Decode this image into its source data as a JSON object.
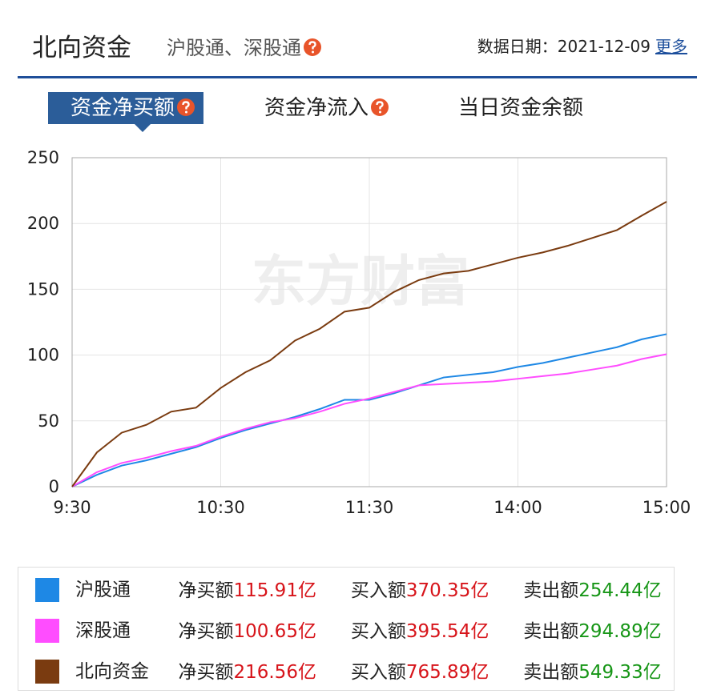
{
  "header": {
    "title": "北向资金",
    "subtitle": "沪股通、深股通",
    "date_label": "数据日期：",
    "date": "2021-12-09",
    "more": "更多"
  },
  "tabs": [
    "资金净买额",
    "资金净流入",
    "当日资金余额"
  ],
  "watermark": "东方财富",
  "chart_data": {
    "type": "line",
    "x": [
      0,
      10,
      20,
      30,
      40,
      50,
      60,
      70,
      80,
      90,
      100,
      110,
      120,
      130,
      140,
      150,
      160,
      170,
      180,
      190,
      200,
      210,
      220,
      230,
      240
    ],
    "xlim": [
      0,
      240
    ],
    "xticks": [
      {
        "value": 0,
        "label": "9:30"
      },
      {
        "value": 60,
        "label": "10:30"
      },
      {
        "value": 120,
        "label": "11:30"
      },
      {
        "value": 180,
        "label": "14:00"
      },
      {
        "value": 240,
        "label": "15:00"
      }
    ],
    "ylim": [
      0,
      250
    ],
    "yticks": [
      0,
      50,
      100,
      150,
      200,
      250
    ],
    "grid": true,
    "series": [
      {
        "name": "沪股通",
        "color": "#1e88e5",
        "values": [
          0,
          9,
          16,
          20,
          25,
          30,
          37,
          43,
          48,
          53,
          59,
          66,
          66,
          71,
          77,
          83,
          85,
          87,
          91,
          94,
          98,
          102,
          106,
          112,
          115.91
        ]
      },
      {
        "name": "深股通",
        "color": "#ff4dff",
        "values": [
          0,
          11,
          18,
          22,
          27,
          31,
          38,
          44,
          49,
          52,
          57,
          63,
          67,
          72,
          77,
          78,
          79,
          80,
          82,
          84,
          86,
          89,
          92,
          97,
          100.65
        ]
      },
      {
        "name": "北向资金",
        "color": "#7a3b10",
        "values": [
          0,
          26,
          41,
          47,
          57,
          60,
          75,
          87,
          96,
          111,
          120,
          133,
          136,
          148,
          157,
          162,
          164,
          169,
          174,
          178,
          183,
          189,
          195,
          206,
          216.56
        ]
      }
    ]
  },
  "summary": {
    "labels": [
      "净买额",
      "买入额",
      "卖出额"
    ],
    "rows": [
      {
        "net": "115.91亿",
        "buy": "370.35亿",
        "sell": "254.44亿"
      },
      {
        "net": "100.65亿",
        "buy": "395.54亿",
        "sell": "294.89亿"
      },
      {
        "net": "216.56亿",
        "buy": "765.89亿",
        "sell": "549.33亿"
      }
    ]
  }
}
